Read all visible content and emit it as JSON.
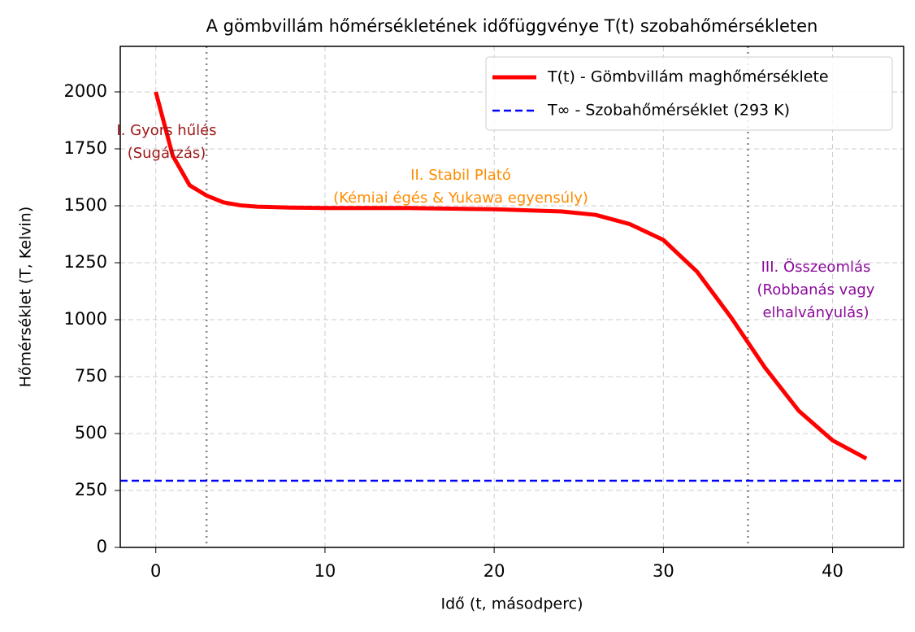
{
  "chart_data": {
    "type": "line",
    "title": "A gömbvillám hőmérsékletének időfüggvénye T(t) szobahőmérsékleten",
    "x_label": "Idő (t, másodperc)",
    "y_label": "Hőmérséklet (T, Kelvin)",
    "x": [
      0,
      1,
      2,
      3,
      4,
      5,
      6,
      8,
      10,
      15,
      20,
      24,
      26,
      28,
      30,
      32,
      34,
      35,
      36,
      38,
      40,
      42
    ],
    "series": [
      {
        "name": "T(t) - Gömbvillám maghőmérséklete",
        "color": "#ff0000",
        "values": [
          2000,
          1720,
          1590,
          1545,
          1515,
          1502,
          1496,
          1492,
          1490,
          1490,
          1485,
          1475,
          1460,
          1420,
          1350,
          1210,
          1010,
          900,
          790,
          600,
          470,
          390
        ]
      }
    ],
    "hlines": [
      {
        "name": "T∞ - Szobahőmérséklet (293 K)",
        "value": 293,
        "color": "#0000ff"
      }
    ],
    "vlines": [
      3,
      35
    ],
    "annotations": [
      {
        "lines": [
          "I. Gyors hűlés",
          "(Sugárzás)"
        ],
        "color": "#a01818"
      },
      {
        "lines": [
          "II. Stabil Plató",
          "(Kémiai égés & Yukawa egyensúly)"
        ],
        "color": "#ff8c00"
      },
      {
        "lines": [
          "III. Összeomlás",
          "(Robbanás vagy",
          "elhalványulás)"
        ],
        "color": "#8b0a9b"
      }
    ],
    "xlim": [
      -2.1,
      44.2
    ],
    "ylim": [
      0,
      2200
    ],
    "xticks": [
      0,
      10,
      20,
      30,
      40
    ],
    "yticks": [
      0,
      250,
      500,
      750,
      1000,
      1250,
      1500,
      1750,
      2000
    ],
    "grid": true,
    "legend": "upper right"
  }
}
